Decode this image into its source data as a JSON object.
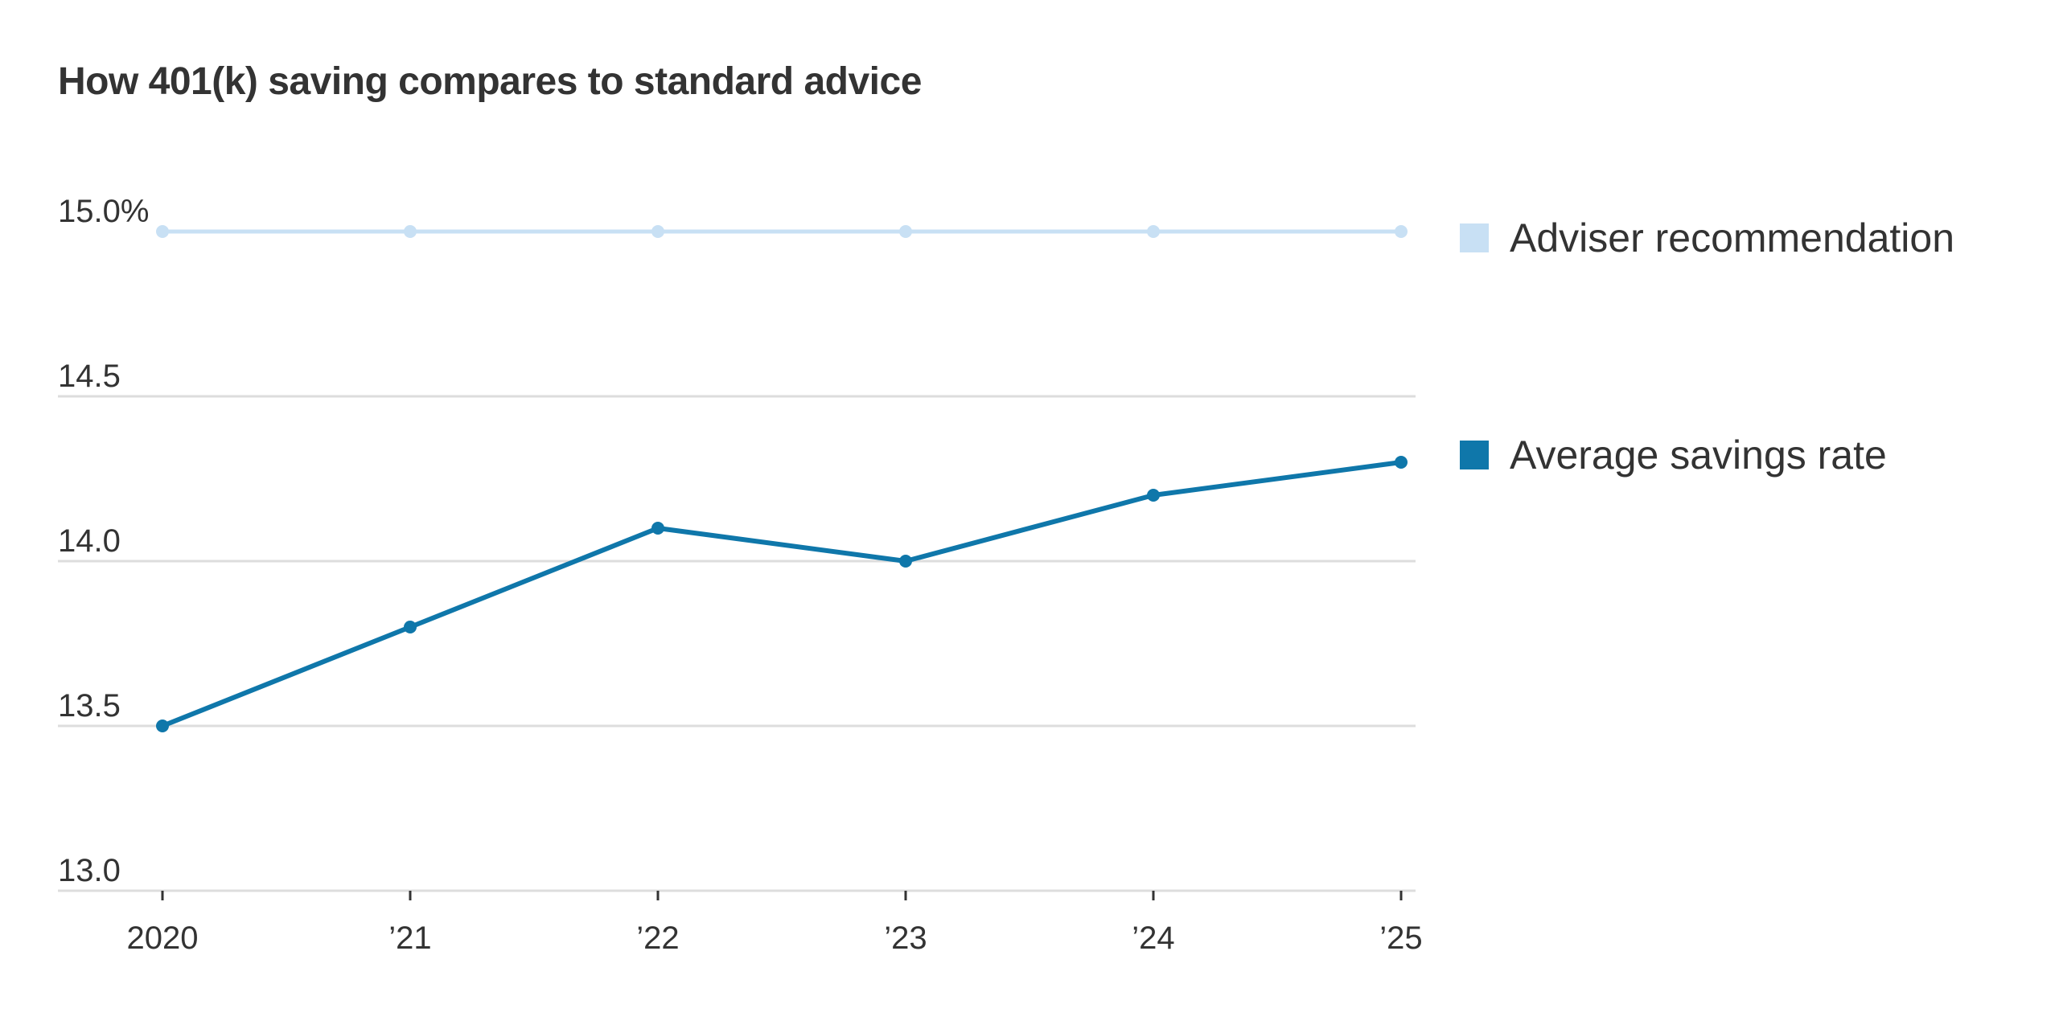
{
  "chart_data": {
    "type": "line",
    "title": "How 401(k) saving compares to standard advice",
    "xlabel": "",
    "ylabel": "",
    "categories": [
      "2020",
      "’21",
      "’22",
      "’23",
      "’24",
      "’25"
    ],
    "ylim": [
      13.0,
      15.0
    ],
    "yticks": [
      13.0,
      13.5,
      14.0,
      14.5,
      15.0
    ],
    "ytick_labels": [
      "13.0",
      "13.5",
      "14.0",
      "14.5",
      "15.0%"
    ],
    "grid": true,
    "legend_position": "right",
    "series": [
      {
        "name": "Adviser recommendation",
        "color": "#c8e0f4",
        "values": [
          15.0,
          15.0,
          15.0,
          15.0,
          15.0,
          15.0
        ]
      },
      {
        "name": "Average savings rate",
        "color": "#0f77aa",
        "values": [
          13.5,
          13.8,
          14.1,
          14.0,
          14.2,
          14.3
        ]
      }
    ]
  }
}
